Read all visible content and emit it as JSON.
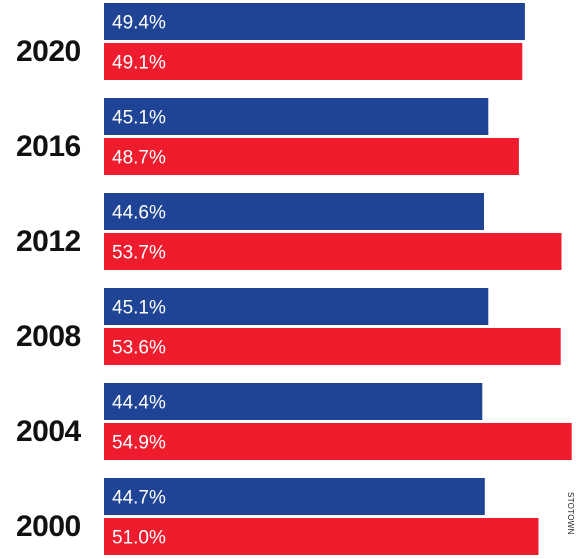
{
  "chart_data": {
    "type": "bar",
    "orientation": "horizontal",
    "categories": [
      "2020",
      "2016",
      "2012",
      "2008",
      "2004",
      "2000"
    ],
    "series": [
      {
        "color": "#1f4496",
        "values": [
          49.4,
          45.1,
          44.6,
          45.1,
          44.4,
          44.7
        ],
        "labels": [
          "49.4%",
          "45.1%",
          "44.6%",
          "45.1%",
          "44.4%",
          "44.7%"
        ]
      },
      {
        "color": "#ef1c2e",
        "values": [
          49.1,
          48.7,
          53.7,
          53.6,
          54.9,
          51.0
        ],
        "labels": [
          "49.1%",
          "48.7%",
          "53.7%",
          "53.6%",
          "54.9%",
          "51.0%"
        ]
      }
    ],
    "grid": false,
    "legend": "none"
  },
  "credit": "STOTOWN"
}
